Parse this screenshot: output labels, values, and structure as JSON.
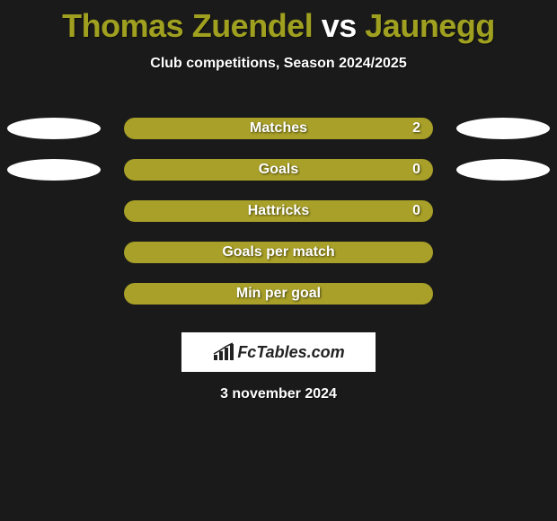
{
  "title": {
    "player1": "Thomas Zuendel",
    "vs": "vs",
    "player2": "Jaunegg",
    "player1_color": "#a0a020",
    "vs_color": "#ffffff",
    "player2_color": "#a0a020"
  },
  "subtitle": "Club competitions, Season 2024/2025",
  "rows": [
    {
      "label": "Matches",
      "value": "2",
      "show_value": true,
      "left_ellipse": true,
      "right_ellipse": true,
      "left_color": "#ffffff",
      "right_color": "#ffffff"
    },
    {
      "label": "Goals",
      "value": "0",
      "show_value": true,
      "left_ellipse": true,
      "right_ellipse": true,
      "left_color": "#ffffff",
      "right_color": "#ffffff"
    },
    {
      "label": "Hattricks",
      "value": "0",
      "show_value": true,
      "left_ellipse": false,
      "right_ellipse": false,
      "left_color": "#ffffff",
      "right_color": "#ffffff"
    },
    {
      "label": "Goals per match",
      "value": "",
      "show_value": false,
      "left_ellipse": false,
      "right_ellipse": false,
      "left_color": "#ffffff",
      "right_color": "#ffffff"
    },
    {
      "label": "Min per goal",
      "value": "",
      "show_value": false,
      "left_ellipse": false,
      "right_ellipse": false,
      "left_color": "#ffffff",
      "right_color": "#ffffff"
    }
  ],
  "bar_color": "#a8a028",
  "logo_text": "FcTables.com",
  "date": "3 november 2024",
  "background_color": "#1a1a1a"
}
